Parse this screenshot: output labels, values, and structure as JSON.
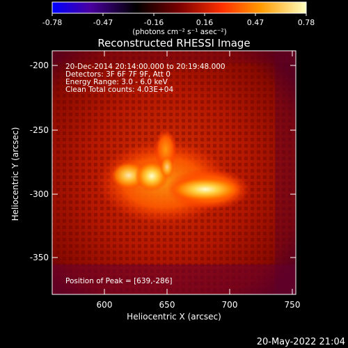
{
  "colorbar": {
    "tick_labels": [
      "-0.78",
      "-0.47",
      "-0.16",
      "0.16",
      "0.47",
      "0.78"
    ],
    "unit_label": "(photons cm⁻² s⁻¹ asec⁻²)",
    "range": [
      -0.78,
      0.78
    ],
    "colormap": [
      "#0000ff",
      "#4a00a0",
      "#000000",
      "#7a0000",
      "#ff3000",
      "#ff9a00",
      "#ffffc0"
    ]
  },
  "title": "Reconstructed RHESSI Image",
  "info": {
    "time_range": "20-Dec-2014 20:14:00.000 to 20:19:48.000",
    "detectors": "Detectors: 3F 6F 7F 9F, Att 0",
    "energy_range": "Energy Range: 3.0 - 6.0 keV",
    "clean_counts": "Clean     Total counts: 4.03E+04",
    "peak_position": "Position of Peak = [639,-286]"
  },
  "x_axis": {
    "label": "Heliocentric X (arcsec)",
    "ticks": [
      "600",
      "650",
      "700",
      "750"
    ],
    "range": [
      557,
      752
    ]
  },
  "y_axis": {
    "label": "Heliocentric Y (arcsec)",
    "ticks": [
      "-200",
      "-250",
      "-300",
      "-350"
    ],
    "range": [
      -381,
      -189
    ]
  },
  "footer": {
    "timestamp": "20-May-2022 21:04"
  }
}
